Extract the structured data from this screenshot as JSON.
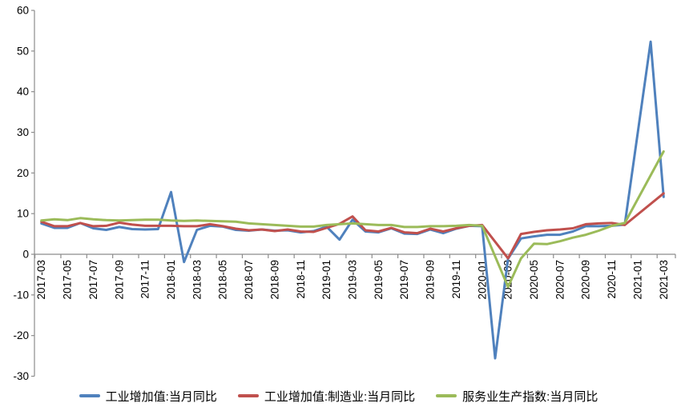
{
  "chart_data": {
    "type": "line",
    "title": "",
    "xlabel": "",
    "ylabel": "",
    "ylim": [
      -30,
      60
    ],
    "ytick_interval": 10,
    "grid": false,
    "legend_position": "bottom",
    "axis_color": "#8c8c8c",
    "x_label_every": 2,
    "categories": [
      "2017-03",
      "2017-04",
      "2017-05",
      "2017-06",
      "2017-07",
      "2017-08",
      "2017-09",
      "2017-10",
      "2017-11",
      "2017-12",
      "2018-01",
      "2018-02",
      "2018-03",
      "2018-04",
      "2018-05",
      "2018-06",
      "2018-07",
      "2018-08",
      "2018-09",
      "2018-10",
      "2018-11",
      "2018-12",
      "2019-01",
      "2019-02",
      "2019-03",
      "2019-04",
      "2019-05",
      "2019-06",
      "2019-07",
      "2019-08",
      "2019-09",
      "2019-10",
      "2019-11",
      "2019-12",
      "2020-01",
      "2020-02",
      "2020-03",
      "2020-04",
      "2020-05",
      "2020-06",
      "2020-07",
      "2020-08",
      "2020-09",
      "2020-10",
      "2020-11",
      "2020-12",
      "2021-01",
      "2021-02",
      "2021-03"
    ],
    "series": [
      {
        "name": "工业增加值:当月同比",
        "color": "#4F81BD",
        "values": [
          7.6,
          6.5,
          6.5,
          7.7,
          6.4,
          6.0,
          6.7,
          6.2,
          6.1,
          6.2,
          15.3,
          -1.9,
          6.0,
          7.0,
          6.8,
          6.0,
          5.8,
          6.1,
          5.8,
          5.9,
          5.4,
          5.7,
          6.8,
          3.6,
          8.5,
          5.6,
          5.4,
          6.4,
          5.1,
          5.0,
          6.1,
          5.2,
          6.3,
          7.0,
          6.9,
          -25.6,
          -1.1,
          3.9,
          4.4,
          4.8,
          4.8,
          5.6,
          6.9,
          6.9,
          7.0,
          7.3,
          null,
          52.3,
          14.1
        ]
      },
      {
        "name": "工业增加值:制造业:当月同比",
        "color": "#C0504D",
        "values": [
          8.0,
          6.9,
          6.9,
          7.7,
          6.9,
          7.0,
          7.8,
          7.3,
          7.0,
          7.0,
          7.0,
          6.9,
          6.9,
          7.4,
          6.9,
          6.3,
          5.9,
          6.1,
          5.7,
          6.1,
          5.6,
          5.5,
          6.5,
          7.5,
          9.3,
          5.9,
          5.6,
          6.5,
          5.4,
          5.2,
          6.3,
          5.6,
          6.4,
          7.0,
          7.2,
          null,
          -1.0,
          5.0,
          5.5,
          5.9,
          6.1,
          6.4,
          7.4,
          7.6,
          7.7,
          7.2,
          null,
          null,
          15.0
        ]
      },
      {
        "name": "服务业生产指数:当月同比",
        "color": "#9BBB59",
        "values": [
          8.3,
          8.6,
          8.4,
          8.9,
          8.6,
          8.4,
          8.3,
          8.4,
          8.5,
          8.5,
          8.3,
          8.2,
          8.3,
          8.2,
          8.1,
          8.0,
          7.6,
          7.4,
          7.2,
          7.0,
          6.8,
          6.8,
          7.2,
          7.4,
          7.6,
          7.4,
          7.2,
          7.2,
          6.7,
          6.7,
          6.9,
          6.9,
          7.0,
          7.2,
          7.0,
          null,
          -8.0,
          -1.0,
          2.6,
          2.5,
          3.2,
          4.1,
          4.8,
          5.8,
          7.0,
          7.7,
          null,
          null,
          25.3
        ]
      }
    ]
  }
}
